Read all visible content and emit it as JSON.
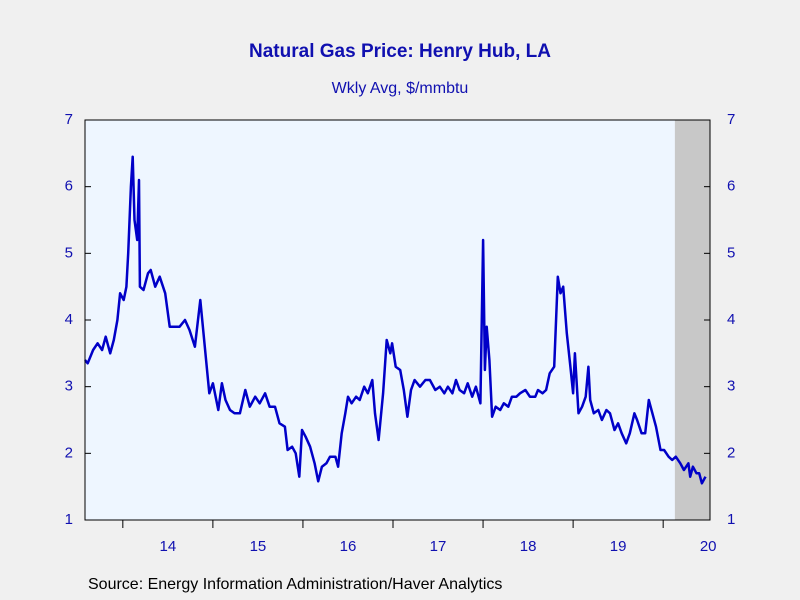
{
  "chart_data": {
    "type": "line",
    "title": "Natural Gas Price: Henry Hub, LA",
    "subtitle": "Wkly Avg, $/mmbtu",
    "source": "Source:  Energy Information Administration/Haver Analytics",
    "xlim": [
      13.58,
      20.52
    ],
    "xticks": [
      {
        "value": 14.5,
        "label": "14"
      },
      {
        "value": 15.5,
        "label": "15"
      },
      {
        "value": 16.5,
        "label": "16"
      },
      {
        "value": 17.5,
        "label": "17"
      },
      {
        "value": 18.5,
        "label": "18"
      },
      {
        "value": 19.5,
        "label": "19"
      },
      {
        "value": 20.5,
        "label": "20"
      }
    ],
    "xtick_marks": [
      14,
      15,
      16,
      17,
      18,
      19,
      20
    ],
    "ylim": [
      1,
      7
    ],
    "yticks": [
      1,
      2,
      3,
      4,
      5,
      6,
      7
    ],
    "y2lim": [
      1,
      7
    ],
    "y2ticks": [
      1,
      2,
      3,
      4,
      5,
      6,
      7
    ],
    "shaded": [
      20.13,
      20.52
    ],
    "shade_color": "#c8c8c8",
    "series": [
      {
        "color": "#0000c8",
        "x": [
          13.58,
          13.61,
          13.67,
          13.72,
          13.77,
          13.81,
          13.86,
          13.9,
          13.94,
          13.97,
          14.01,
          14.04,
          14.06,
          14.09,
          14.11,
          14.13,
          14.16,
          14.18,
          14.19,
          14.23,
          14.28,
          14.31,
          14.36,
          14.41,
          14.47,
          14.52,
          14.58,
          14.63,
          14.69,
          14.74,
          14.8,
          14.86,
          14.91,
          14.96,
          15.0,
          15.06,
          15.1,
          15.14,
          15.19,
          15.24,
          15.3,
          15.36,
          15.41,
          15.47,
          15.52,
          15.58,
          15.63,
          15.69,
          15.74,
          15.8,
          15.83,
          15.88,
          15.92,
          15.96,
          15.99,
          16.03,
          16.08,
          16.13,
          16.17,
          16.21,
          16.26,
          16.3,
          16.36,
          16.39,
          16.43,
          16.47,
          16.5,
          16.54,
          16.59,
          16.63,
          16.68,
          16.72,
          16.77,
          16.8,
          16.84,
          16.89,
          16.93,
          16.97,
          16.99,
          17.03,
          17.08,
          17.12,
          17.16,
          17.2,
          17.24,
          17.3,
          17.36,
          17.41,
          17.47,
          17.52,
          17.57,
          17.61,
          17.66,
          17.7,
          17.74,
          17.79,
          17.83,
          17.88,
          17.92,
          17.97,
          18.0,
          18.02,
          18.04,
          18.07,
          18.1,
          18.14,
          18.19,
          18.23,
          18.28,
          18.32,
          18.37,
          18.41,
          18.47,
          18.52,
          18.58,
          18.61,
          18.66,
          18.7,
          18.74,
          18.79,
          18.83,
          18.86,
          18.89,
          18.93,
          18.97,
          19.0,
          19.02,
          19.06,
          19.1,
          19.14,
          19.17,
          19.19,
          19.23,
          19.28,
          19.32,
          19.37,
          19.41,
          19.46,
          19.5,
          19.54,
          19.59,
          19.63,
          19.68,
          19.71,
          19.76,
          19.8,
          19.84,
          19.89,
          19.92,
          19.97,
          20.01,
          20.06,
          20.1,
          20.14,
          20.19,
          20.23,
          20.28,
          20.3,
          20.33,
          20.37,
          20.4,
          20.43,
          20.47
        ],
        "values": [
          3.4,
          3.35,
          3.55,
          3.65,
          3.55,
          3.75,
          3.5,
          3.7,
          4.0,
          4.4,
          4.3,
          4.5,
          5.0,
          6.0,
          6.45,
          5.5,
          5.2,
          6.1,
          4.5,
          4.45,
          4.7,
          4.75,
          4.5,
          4.65,
          4.4,
          3.9,
          3.9,
          3.9,
          4.0,
          3.85,
          3.6,
          4.3,
          3.6,
          2.9,
          3.05,
          2.65,
          3.05,
          2.8,
          2.65,
          2.6,
          2.6,
          2.95,
          2.7,
          2.85,
          2.75,
          2.9,
          2.7,
          2.7,
          2.45,
          2.4,
          2.05,
          2.1,
          2.0,
          1.65,
          2.35,
          2.25,
          2.1,
          1.85,
          1.58,
          1.8,
          1.85,
          1.95,
          1.95,
          1.8,
          2.3,
          2.6,
          2.85,
          2.75,
          2.85,
          2.8,
          3.0,
          2.9,
          3.1,
          2.6,
          2.2,
          2.9,
          3.7,
          3.5,
          3.65,
          3.3,
          3.25,
          2.95,
          2.55,
          2.95,
          3.1,
          3.0,
          3.1,
          3.1,
          2.95,
          3.0,
          2.9,
          3.0,
          2.9,
          3.1,
          2.95,
          2.9,
          3.05,
          2.85,
          3.0,
          2.75,
          5.2,
          3.25,
          3.9,
          3.4,
          2.55,
          2.7,
          2.65,
          2.75,
          2.7,
          2.85,
          2.85,
          2.9,
          2.95,
          2.85,
          2.85,
          2.95,
          2.9,
          2.95,
          3.2,
          3.3,
          4.65,
          4.4,
          4.5,
          3.8,
          3.3,
          2.9,
          3.5,
          2.6,
          2.7,
          2.85,
          3.3,
          2.8,
          2.6,
          2.65,
          2.5,
          2.65,
          2.6,
          2.35,
          2.45,
          2.3,
          2.15,
          2.3,
          2.6,
          2.5,
          2.3,
          2.3,
          2.8,
          2.55,
          2.4,
          2.05,
          2.05,
          1.95,
          1.9,
          1.95,
          1.85,
          1.75,
          1.85,
          1.65,
          1.8,
          1.7,
          1.7,
          1.55,
          1.65
        ]
      }
    ]
  }
}
